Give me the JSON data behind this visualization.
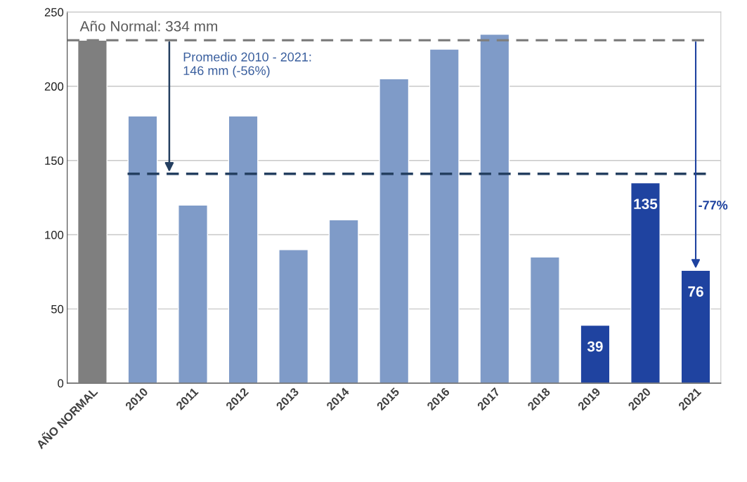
{
  "chart_data": {
    "type": "bar",
    "categories": [
      "AÑO NORMAL",
      "2010",
      "2011",
      "2012",
      "2013",
      "2014",
      "2015",
      "2016",
      "2017",
      "2018",
      "2019",
      "2020",
      "2021"
    ],
    "values": [
      231,
      180,
      120,
      180,
      90,
      110,
      205,
      225,
      235,
      85,
      39,
      135,
      76
    ],
    "colors": [
      "#7f7f7f",
      "#7f9bc8",
      "#7f9bc8",
      "#7f9bc8",
      "#7f9bc8",
      "#7f9bc8",
      "#7f9bc8",
      "#7f9bc8",
      "#7f9bc8",
      "#7f9bc8",
      "#1f43a0",
      "#1f43a0",
      "#1f43a0"
    ],
    "value_labels": [
      null,
      null,
      null,
      null,
      null,
      null,
      null,
      null,
      null,
      null,
      "39",
      "135",
      "76"
    ],
    "ref_lines": [
      {
        "axis": "y",
        "value": 231,
        "color": "#7f7f7f",
        "line_style": "dashed"
      },
      {
        "axis": "y",
        "value": 141,
        "color": "#243f60",
        "line_style": "dashed"
      }
    ],
    "annotations": [
      "Año Normal: 334 mm",
      "Promedio 2010 - 2021:\n146 mm (-56%)",
      "-77%"
    ],
    "ylim": [
      0,
      250
    ],
    "yticks": [
      0,
      50,
      100,
      150,
      200,
      250
    ],
    "grid": "y"
  }
}
